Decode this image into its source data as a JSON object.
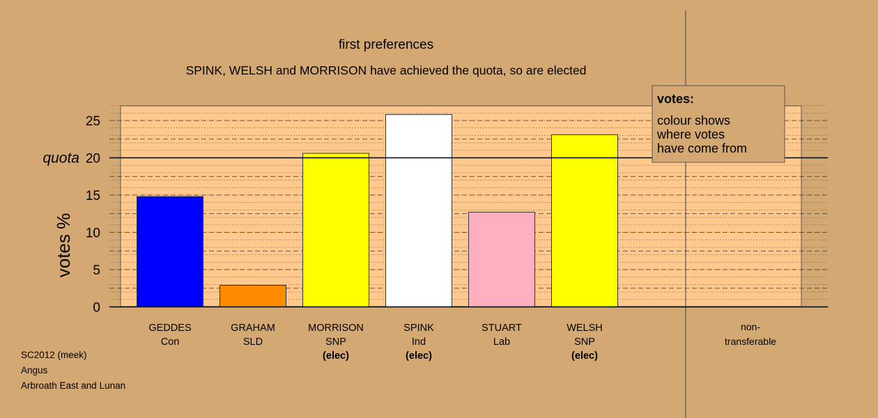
{
  "chart_data": {
    "type": "bar",
    "title": "first preferences",
    "subtitle": "SPINK, WELSH and MORRISON have achieved the quota, so are elected",
    "ylabel": "votes %",
    "ylim": [
      0,
      27
    ],
    "yticks": [
      0,
      5,
      10,
      15,
      20,
      25
    ],
    "quota": 20,
    "quota_label": "quota",
    "grid": true,
    "candidates": [
      {
        "name": "GEDDES",
        "party": "Con",
        "status": "",
        "value": 14.8,
        "color": "#0000ff"
      },
      {
        "name": "GRAHAM",
        "party": "SLD",
        "status": "",
        "value": 2.9,
        "color": "#ff8c00"
      },
      {
        "name": "MORRISON",
        "party": "SNP",
        "status": "(elec)",
        "value": 20.6,
        "color": "#ffff00"
      },
      {
        "name": "SPINK",
        "party": "Ind",
        "status": "(elec)",
        "value": 25.8,
        "color": "#ffffff"
      },
      {
        "name": "STUART",
        "party": "Lab",
        "status": "",
        "value": 12.7,
        "color": "#ffb0c0"
      },
      {
        "name": "WELSH",
        "party": "SNP",
        "status": "(elec)",
        "value": 23.1,
        "color": "#ffff00"
      }
    ],
    "nontransferable": {
      "line1": "non-",
      "line2": "transferable",
      "value": 0
    },
    "legend": {
      "placement": "top-right",
      "title": "votes:",
      "lines": [
        "colour shows",
        "where votes",
        "have come from"
      ]
    }
  },
  "footer": {
    "lines": [
      "SC2012 (meek)",
      "Angus",
      "Arbroath East and Lunan"
    ]
  }
}
